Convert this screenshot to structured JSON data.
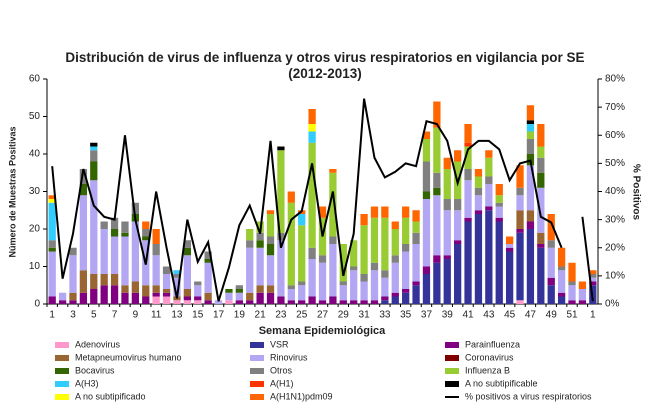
{
  "chart_data": {
    "type": "bar",
    "stacked": true,
    "title": "Distribución de virus de influenza y otros virus respiratorios en vigilancia por SE (2012-2013)",
    "x_label": "Semana Epidemiológica",
    "y_label": "Número de Muestras Positivas",
    "y2_label": "% Positivos",
    "categories": [
      "1",
      null,
      "3",
      null,
      "5",
      null,
      "7",
      null,
      "9",
      null,
      "11",
      null,
      "13",
      null,
      "15",
      null,
      "17",
      null,
      "19",
      null,
      "21",
      null,
      "23",
      null,
      "25",
      null,
      "27",
      null,
      "29",
      null,
      "31",
      null,
      "33",
      null,
      "35",
      null,
      "37",
      null,
      "39",
      null,
      "41",
      null,
      "43",
      null,
      "45",
      null,
      "47",
      null,
      "49",
      null,
      "51",
      null,
      "1"
    ],
    "ylim": [
      0,
      60
    ],
    "yticks": [
      0,
      10,
      20,
      30,
      40,
      50,
      60
    ],
    "y2lim": [
      0,
      80
    ],
    "y2ticks": [
      {
        "value": 0,
        "label": "0%"
      },
      {
        "value": 10,
        "label": "10%"
      },
      {
        "value": 20,
        "label": "20%"
      },
      {
        "value": 30,
        "label": "30%"
      },
      {
        "value": 40,
        "label": "40%"
      },
      {
        "value": 50,
        "label": "50%"
      },
      {
        "value": 60,
        "label": "60%"
      },
      {
        "value": 70,
        "label": "70%"
      },
      {
        "value": 80,
        "label": "80%"
      }
    ],
    "grid": false,
    "series": [
      {
        "name": "Adenovirus",
        "color": "#ff99cc",
        "values": [
          0,
          0,
          0,
          0,
          0,
          0,
          0,
          0,
          0,
          0,
          2,
          2,
          1,
          1,
          1,
          0,
          0,
          1,
          0,
          0,
          0,
          0,
          0,
          0,
          0,
          0,
          0,
          0,
          0,
          0,
          0,
          0,
          0,
          0,
          0,
          0,
          0,
          0,
          0,
          0,
          0,
          0,
          0,
          0,
          0,
          1,
          0,
          0,
          0,
          0,
          0,
          0,
          0
        ]
      },
      {
        "name": "VSR",
        "color": "#333399",
        "values": [
          0,
          0,
          0,
          0,
          0,
          0,
          0,
          0,
          0,
          0,
          0,
          0,
          0,
          0,
          0,
          0,
          0,
          0,
          0,
          0,
          0,
          0,
          0,
          0,
          0,
          0,
          0,
          0,
          0,
          0,
          0,
          0,
          1,
          2,
          3,
          5,
          8,
          11,
          12,
          16,
          22,
          24,
          25,
          22,
          14,
          18,
          20,
          15,
          5,
          2,
          0,
          0,
          5
        ]
      },
      {
        "name": "Parainfluenza",
        "color": "#800080",
        "values": [
          2,
          1,
          1,
          3,
          4,
          5,
          5,
          3,
          3,
          2,
          1,
          1,
          0,
          1,
          1,
          1,
          0,
          0,
          1,
          1,
          3,
          3,
          2,
          1,
          1,
          2,
          1,
          2,
          1,
          1,
          1,
          1,
          1,
          1,
          1,
          1,
          2,
          2,
          1,
          1,
          1,
          1,
          1,
          1,
          1,
          1,
          2,
          1,
          2,
          1,
          1,
          1,
          1
        ]
      },
      {
        "name": "Metapneumovirus humano",
        "color": "#996633",
        "values": [
          0,
          0,
          2,
          6,
          4,
          3,
          3,
          2,
          3,
          3,
          2,
          1,
          1,
          2,
          0,
          2,
          0,
          0,
          0,
          2,
          2,
          2,
          0,
          0,
          0,
          0,
          0,
          0,
          0,
          0,
          0,
          0,
          0,
          0,
          0,
          0,
          0,
          0,
          0,
          0,
          0,
          0,
          0,
          0,
          0,
          5,
          3,
          3,
          0,
          0,
          0,
          0,
          0
        ]
      },
      {
        "name": "Rinovirus",
        "color": "#b3a6f2",
        "values": [
          12,
          2,
          10,
          20,
          25,
          12,
          10,
          13,
          16,
          12,
          8,
          4,
          5,
          9,
          3,
          8,
          1,
          2,
          2,
          12,
          10,
          8,
          15,
          3,
          4,
          10,
          10,
          14,
          4,
          8,
          5,
          8,
          5,
          8,
          10,
          10,
          18,
          16,
          12,
          8,
          10,
          4,
          6,
          3,
          1,
          4,
          12,
          12,
          8,
          6,
          4,
          3,
          1
        ]
      },
      {
        "name": "Coronavirus",
        "color": "#800000",
        "values": [
          0,
          0,
          0,
          0,
          0,
          0,
          0,
          0,
          0,
          0,
          0,
          0,
          0,
          0,
          0,
          0,
          0,
          0,
          0,
          0,
          0,
          0,
          0,
          0,
          0,
          0,
          0,
          0,
          0,
          0,
          0,
          0,
          0,
          0,
          0,
          0,
          0,
          0,
          0,
          0,
          0,
          0,
          0,
          0,
          0,
          0,
          0,
          0,
          0,
          0,
          0,
          0,
          0
        ]
      },
      {
        "name": "Bocavirus",
        "color": "#336600",
        "values": [
          1,
          0,
          0,
          3,
          5,
          0,
          2,
          1,
          2,
          1,
          0,
          0,
          0,
          2,
          0,
          1,
          0,
          1,
          1,
          0,
          2,
          3,
          0,
          0,
          0,
          0,
          0,
          0,
          0,
          0,
          0,
          0,
          0,
          0,
          0,
          0,
          2,
          2,
          0,
          0,
          0,
          0,
          0,
          0,
          0,
          0,
          3,
          4,
          0,
          0,
          0,
          0,
          0
        ]
      },
      {
        "name": "Otros",
        "color": "#808080",
        "values": [
          2,
          0,
          2,
          4,
          3,
          2,
          3,
          3,
          3,
          2,
          3,
          2,
          1,
          2,
          1,
          2,
          0,
          0,
          1,
          2,
          2,
          2,
          2,
          1,
          1,
          3,
          2,
          2,
          1,
          1,
          2,
          2,
          2,
          2,
          2,
          3,
          8,
          4,
          3,
          3,
          3,
          2,
          2,
          1,
          0,
          2,
          4,
          4,
          2,
          1,
          1,
          0,
          1
        ]
      },
      {
        "name": "Influenza  B",
        "color": "#99cc33",
        "values": [
          0,
          0,
          0,
          0,
          0,
          0,
          0,
          0,
          0,
          0,
          0,
          0,
          0,
          0,
          0,
          0,
          0,
          0,
          0,
          3,
          3,
          6,
          22,
          22,
          15,
          28,
          10,
          17,
          10,
          7,
          13,
          12,
          14,
          7,
          7,
          3,
          6,
          12,
          8,
          10,
          6,
          3,
          5,
          2,
          0,
          0,
          2,
          3,
          0,
          0,
          0,
          0,
          0
        ]
      },
      {
        "name": "A(H3)",
        "color": "#33ccff",
        "values": [
          10,
          0,
          0,
          0,
          1,
          0,
          0,
          0,
          0,
          0,
          0,
          0,
          1,
          0,
          0,
          0,
          0,
          0,
          0,
          0,
          0,
          0,
          0,
          0,
          3,
          3,
          0,
          0,
          0,
          0,
          0,
          0,
          0,
          0,
          0,
          0,
          0,
          0,
          0,
          0,
          0,
          0,
          0,
          0,
          0,
          0,
          2,
          0,
          0,
          0,
          0,
          0,
          0
        ]
      },
      {
        "name": "A(H1)",
        "color": "#ff3300",
        "values": [
          0,
          0,
          0,
          0,
          0,
          0,
          0,
          0,
          0,
          0,
          0,
          0,
          0,
          0,
          0,
          0,
          0,
          0,
          0,
          0,
          0,
          0,
          0,
          0,
          0,
          0,
          0,
          0,
          0,
          0,
          0,
          0,
          0,
          0,
          0,
          0,
          0,
          0,
          0,
          0,
          1,
          0,
          0,
          0,
          0,
          0,
          0,
          0,
          0,
          0,
          0,
          0,
          0
        ]
      },
      {
        "name": "A no subtipificable",
        "color": "#000000",
        "values": [
          0,
          0,
          0,
          0,
          1,
          0,
          0,
          0,
          0,
          0,
          0,
          0,
          0,
          0,
          0,
          0,
          0,
          0,
          0,
          0,
          0,
          0,
          1,
          0,
          0,
          0,
          0,
          0,
          0,
          0,
          0,
          0,
          0,
          0,
          0,
          0,
          0,
          0,
          0,
          0,
          0,
          0,
          0,
          0,
          0,
          0,
          1,
          0,
          0,
          0,
          0,
          0,
          0
        ]
      },
      {
        "name": "A no subtipificado",
        "color": "#ffff00",
        "values": [
          1,
          0,
          0,
          0,
          0,
          0,
          0,
          0,
          0,
          0,
          0,
          0,
          0,
          0,
          0,
          0,
          0,
          0,
          0,
          0,
          0,
          0,
          0,
          0,
          0,
          2,
          0,
          0,
          0,
          0,
          0,
          0,
          0,
          0,
          0,
          0,
          0,
          0,
          0,
          0,
          0,
          0,
          0,
          0,
          0,
          0,
          0,
          0,
          0,
          0,
          0,
          0,
          0
        ]
      },
      {
        "name": "A(H1N1)pdm09",
        "color": "#ff6600",
        "values": [
          1,
          0,
          0,
          0,
          0,
          0,
          0,
          0,
          0,
          2,
          4,
          0,
          0,
          0,
          0,
          0,
          0,
          0,
          0,
          0,
          0,
          1,
          0,
          3,
          1,
          4,
          3,
          1,
          0,
          0,
          3,
          3,
          3,
          2,
          3,
          3,
          2,
          7,
          3,
          3,
          5,
          2,
          2,
          3,
          2,
          6,
          4,
          6,
          7,
          5,
          5,
          2,
          1
        ]
      },
      {
        "name": "% positivos a virus respiratorios",
        "color": "#000000",
        "type": "line",
        "axis": "y2",
        "values": [
          49,
          9,
          25,
          48,
          35,
          31,
          30,
          60,
          30,
          14,
          40,
          20,
          2,
          30,
          15,
          22,
          1,
          13,
          28,
          35,
          25,
          58,
          20,
          30,
          33,
          50,
          24,
          40,
          10,
          25,
          73,
          52,
          45,
          47,
          50,
          49,
          65,
          64,
          58,
          43,
          55,
          58,
          58,
          55,
          44,
          50,
          51,
          31,
          29,
          20,
          null,
          31,
          1
        ]
      }
    ]
  }
}
